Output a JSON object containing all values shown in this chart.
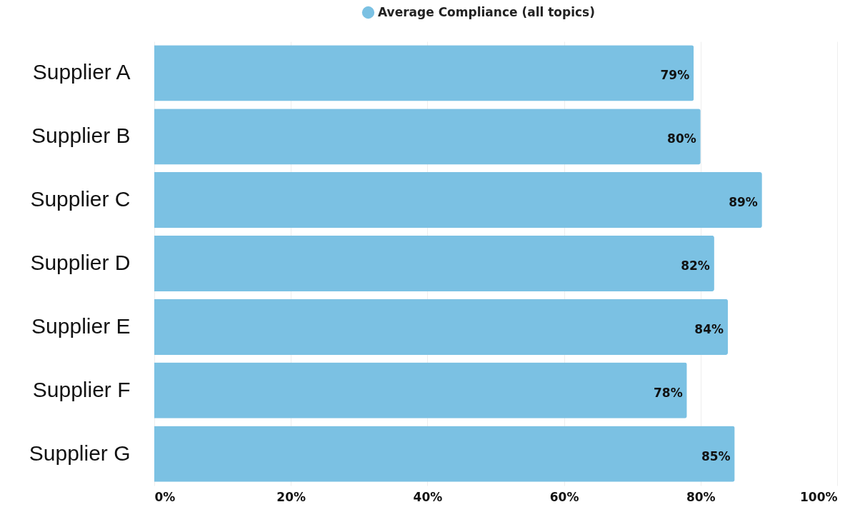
{
  "chart_data": {
    "type": "bar",
    "orientation": "horizontal",
    "categories": [
      "Supplier A",
      "Supplier B",
      "Supplier C",
      "Supplier D",
      "Supplier E",
      "Supplier F",
      "Supplier G"
    ],
    "series": [
      {
        "name": "Average Compliance (all topics)",
        "color": "#7bc1e3",
        "values": [
          79,
          80,
          89,
          82,
          84,
          78,
          85
        ]
      }
    ],
    "value_labels": [
      "79%",
      "80%",
      "89%",
      "82%",
      "84%",
      "78%",
      "85%"
    ],
    "xlim": [
      0,
      100
    ],
    "xticks": [
      {
        "value": 0,
        "label": "0%"
      },
      {
        "value": 20,
        "label": "20%"
      },
      {
        "value": 40,
        "label": "40%"
      },
      {
        "value": 60,
        "label": "60%"
      },
      {
        "value": 80,
        "label": "80%"
      },
      {
        "value": 100,
        "label": "100%"
      }
    ],
    "grid": "x",
    "legend": "top"
  }
}
